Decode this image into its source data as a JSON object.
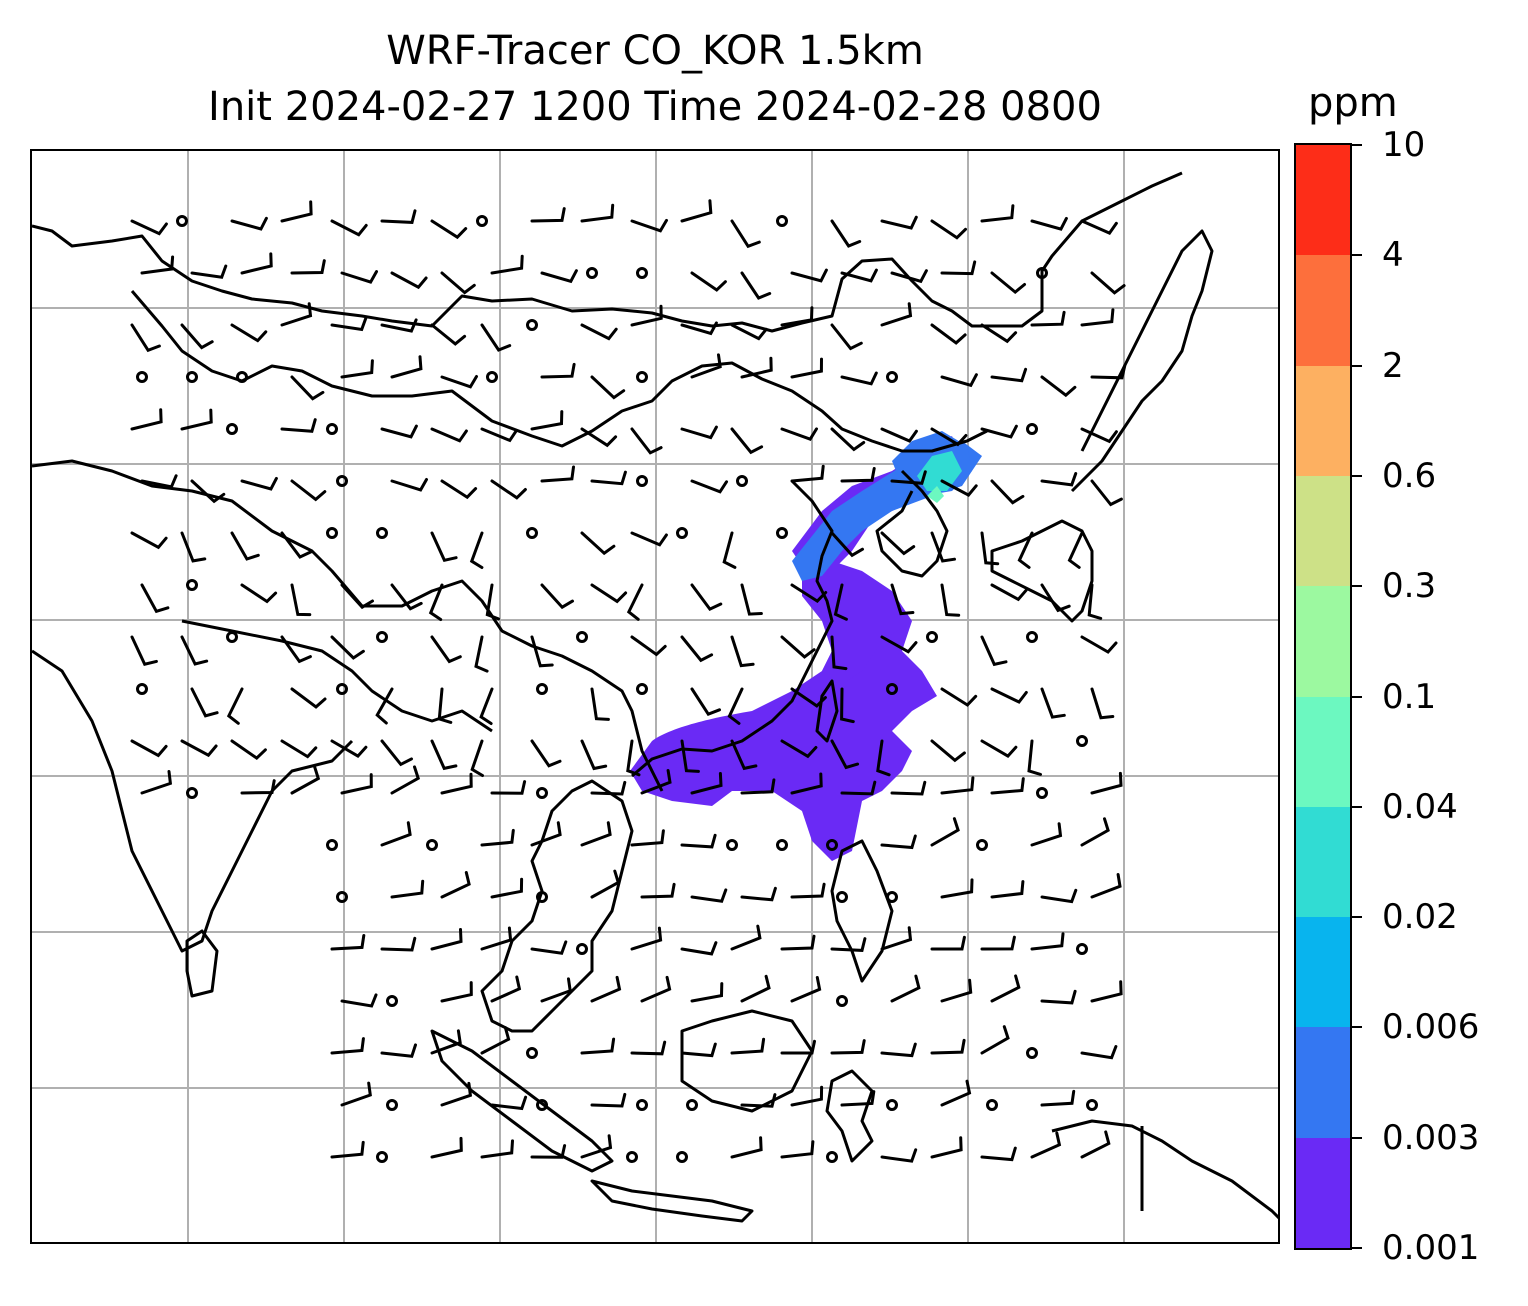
{
  "title": {
    "line1": "WRF-Tracer CO_KOR 1.5km",
    "line2": "Init 2024-02-27 1200 Time 2024-02-28 0800"
  },
  "colorbar": {
    "unit": "ppm",
    "ticks": [
      "0.001",
      "0.003",
      "0.006",
      "0.02",
      "0.04",
      "0.1",
      "0.3",
      "0.6",
      "2",
      "4",
      "10"
    ],
    "colors": [
      "#6a2af5",
      "#3477f2",
      "#08b4ee",
      "#31dcd3",
      "#6cf8c0",
      "#9cf9a0",
      "#cde187",
      "#fdb061",
      "#fd6f3c",
      "#fd2d18"
    ]
  },
  "map": {
    "colors": {
      "coastline": "#000000",
      "grid": "#b0b0b0",
      "wind_barb": "#000000"
    },
    "icons": [
      "wind-barb-icon",
      "calm-wind-circle-icon"
    ]
  }
}
